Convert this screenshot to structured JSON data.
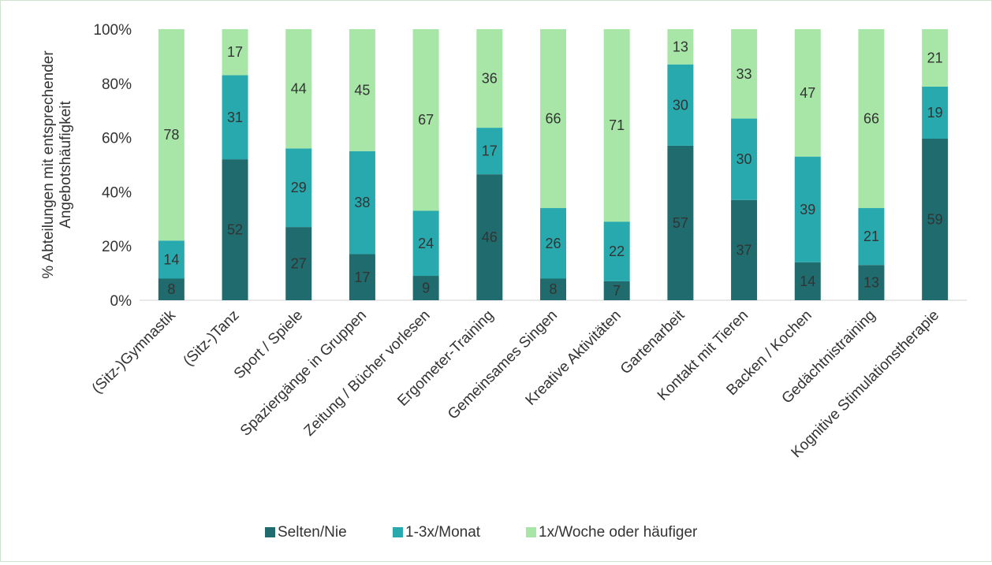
{
  "chart_data": {
    "type": "bar",
    "stacked": true,
    "percent_scale": true,
    "title": "",
    "xlabel": "",
    "ylabel": [
      "% Abteilungen mit entsprechender",
      "Angebotshäufigkeit"
    ],
    "ylim": [
      0,
      100
    ],
    "yticks": [
      "0%",
      "20%",
      "40%",
      "60%",
      "80%",
      "100%"
    ],
    "grid": false,
    "legend_position": "bottom",
    "categories": [
      "(Sitz-)Gymnastik",
      "(Sitz-)Tanz",
      "Sport / Spiele",
      "Spaziergänge in Gruppen",
      "Zeitung / Bücher vorlesen",
      "Ergometer-Training",
      "Gemeinsames Singen",
      "Kreative Aktivitäten",
      "Gartenarbeit",
      "Kontakt mit Tieren",
      "Backen / Kochen",
      "Gedächtnistraining",
      "Kognitive Stimulationstherapie"
    ],
    "series": [
      {
        "name": "Selten/Nie",
        "color": "#1f6b6e",
        "values": [
          8,
          52,
          27,
          17,
          9,
          46,
          8,
          7,
          57,
          37,
          14,
          13,
          59
        ]
      },
      {
        "name": "1-3x/Monat",
        "color": "#27a9ad",
        "values": [
          14,
          31,
          29,
          38,
          24,
          17,
          26,
          22,
          30,
          30,
          39,
          21,
          19
        ]
      },
      {
        "name": "1x/Woche oder häufiger",
        "color": "#a8e6a8",
        "values": [
          78,
          17,
          44,
          45,
          67,
          36,
          66,
          71,
          13,
          33,
          47,
          66,
          21
        ]
      }
    ]
  }
}
